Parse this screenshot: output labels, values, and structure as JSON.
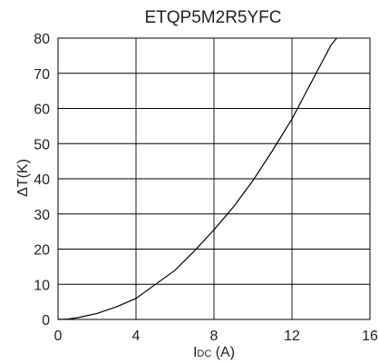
{
  "chart_data": {
    "type": "line",
    "title": "ETQP5M2R5YFC",
    "xlabel": {
      "main": "I",
      "sub": "DC",
      "unit": " (A)"
    },
    "ylabel": "ΔT(K)",
    "xlim": [
      0,
      16
    ],
    "ylim": [
      0,
      80
    ],
    "x_ticks": [
      0,
      4,
      8,
      12,
      16
    ],
    "y_ticks": [
      0,
      10,
      20,
      30,
      40,
      50,
      60,
      70,
      80
    ],
    "grid": true,
    "series": [
      {
        "x": [
          0,
          0.5,
          1,
          2,
          3,
          4,
          5,
          6,
          7,
          8,
          9,
          10,
          11,
          12,
          13,
          14,
          14.3
        ],
        "y": [
          0,
          0.1,
          0.5,
          1.7,
          3.6,
          6,
          10,
          14,
          19.5,
          25.5,
          32,
          39.5,
          48,
          57,
          67.5,
          78,
          80
        ]
      }
    ]
  }
}
